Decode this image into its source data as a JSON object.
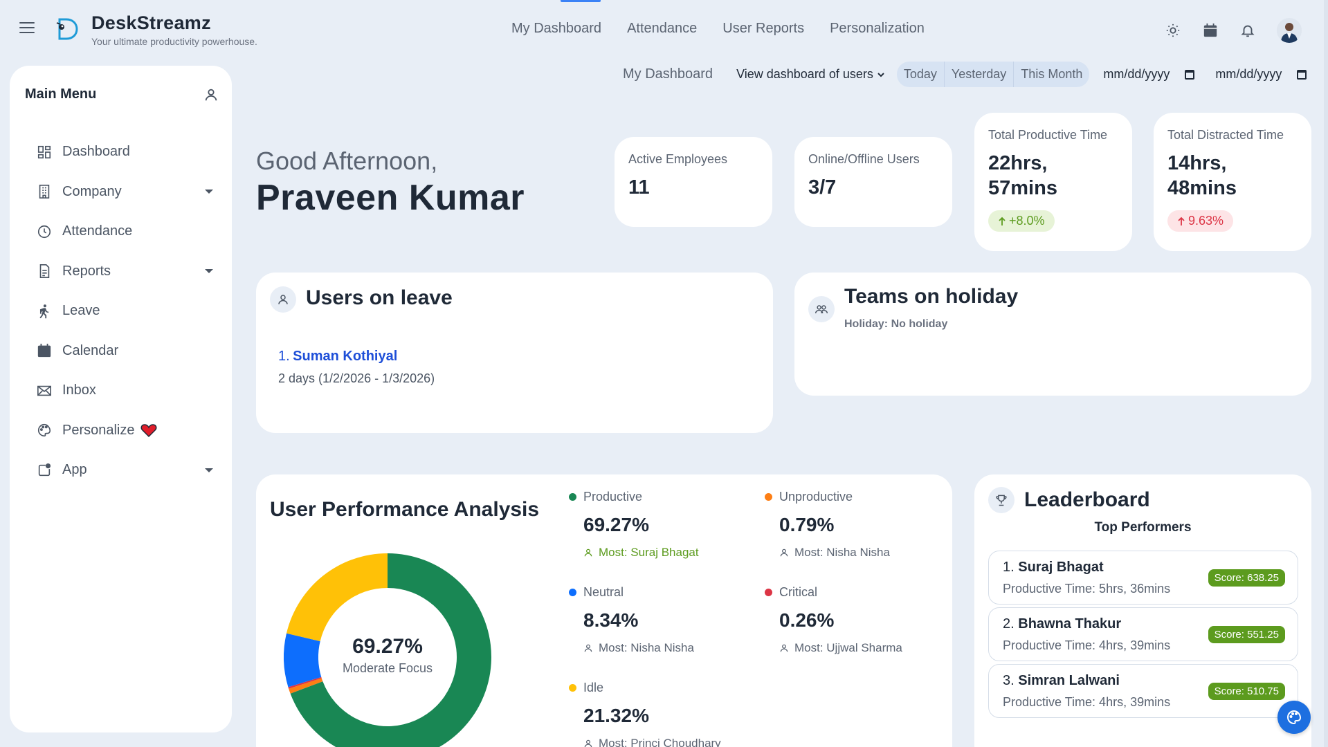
{
  "brand": {
    "name": "DeskStreamz",
    "tagline": "Your ultimate productivity powerhouse."
  },
  "topnav": [
    "My Dashboard",
    "Attendance",
    "User Reports",
    "Personalization"
  ],
  "top_icons": [
    "sun-icon",
    "calendar-icon",
    "bell-icon",
    "avatar"
  ],
  "sidebar": {
    "title": "Main Menu",
    "items": [
      {
        "label": "Dashboard",
        "icon": "grid-icon",
        "has_caret": false
      },
      {
        "label": "Company",
        "icon": "building-icon",
        "has_caret": true
      },
      {
        "label": "Attendance",
        "icon": "clock-icon",
        "has_caret": false
      },
      {
        "label": "Reports",
        "icon": "document-icon",
        "has_caret": true
      },
      {
        "label": "Leave",
        "icon": "walking-icon",
        "has_caret": false
      },
      {
        "label": "Calendar",
        "icon": "calendar-icon",
        "has_caret": false
      },
      {
        "label": "Inbox",
        "icon": "mail-icon",
        "has_caret": false
      },
      {
        "label": "Personalize",
        "icon": "palette-icon",
        "has_caret": false
      },
      {
        "label": "App",
        "icon": "app-icon",
        "has_caret": true
      }
    ]
  },
  "filters": {
    "title": "My Dashboard",
    "view_select": "View dashboard of users",
    "ranges": [
      "Today",
      "Yesterday",
      "This Month"
    ],
    "date_from_placeholder": "mm/dd/yyyy",
    "date_to_placeholder": "mm/dd/yyyy"
  },
  "greeting": {
    "line1": "Good Afternoon,",
    "name": "Praveen Kumar"
  },
  "stats": {
    "active": {
      "label": "Active Employees",
      "value": "11"
    },
    "online": {
      "label": "Online/Offline Users",
      "value": "3/7"
    },
    "productive": {
      "label": "Total Productive Time",
      "value_line1": "22hrs,",
      "value_line2": "57mins",
      "change": "+8.0%"
    },
    "distracted": {
      "label": "Total Distracted Time",
      "value_line1": "14hrs,",
      "value_line2": "48mins",
      "change": "9.63%"
    }
  },
  "leave": {
    "title": "Users on leave",
    "entries": [
      {
        "num": "1.",
        "name": "Suman Kothiyal",
        "dates": "2 days (1/2/2026 - 1/3/2026)"
      }
    ]
  },
  "holiday": {
    "title": "Teams on holiday",
    "status": "Holiday: No holiday"
  },
  "performance": {
    "title": "User Performance Analysis",
    "center_value": "69.27%",
    "center_label": "Moderate Focus",
    "metrics": [
      {
        "name": "Productive",
        "value": "69.27%",
        "most": "Most: Suraj Bhagat",
        "color": "#198754",
        "pct": 69.27
      },
      {
        "name": "Unproductive",
        "value": "0.79%",
        "most": "Most: Nisha Nisha",
        "color": "#fd7e14",
        "pct": 0.79
      },
      {
        "name": "Neutral",
        "value": "8.34%",
        "most": "Most: Nisha Nisha",
        "color": "#0d6efd",
        "pct": 8.34
      },
      {
        "name": "Critical",
        "value": "0.26%",
        "most": "Most: Ujjwal Sharma",
        "color": "#dc3545",
        "pct": 0.26
      },
      {
        "name": "Idle",
        "value": "21.32%",
        "most": "Most: Princi Choudhary",
        "color": "#ffc107",
        "pct": 21.32
      }
    ]
  },
  "leaderboard": {
    "title": "Leaderboard",
    "subtitle": "Top Performers",
    "entries": [
      {
        "rank": "1.",
        "name": "Suraj Bhagat",
        "time": "Productive Time: 5hrs, 36mins",
        "score": "Score: 638.25"
      },
      {
        "rank": "2.",
        "name": "Bhawna Thakur",
        "time": "Productive Time: 4hrs, 39mins",
        "score": "Score: 551.25"
      },
      {
        "rank": "3.",
        "name": "Simran Lalwani",
        "time": "Productive Time: 4hrs, 39mins",
        "score": "Score: 510.75"
      }
    ]
  },
  "colors": {
    "accent": "#1d4ed8",
    "success": "#5c9b1e",
    "danger": "#dc3545",
    "bg": "#e8eef6"
  }
}
